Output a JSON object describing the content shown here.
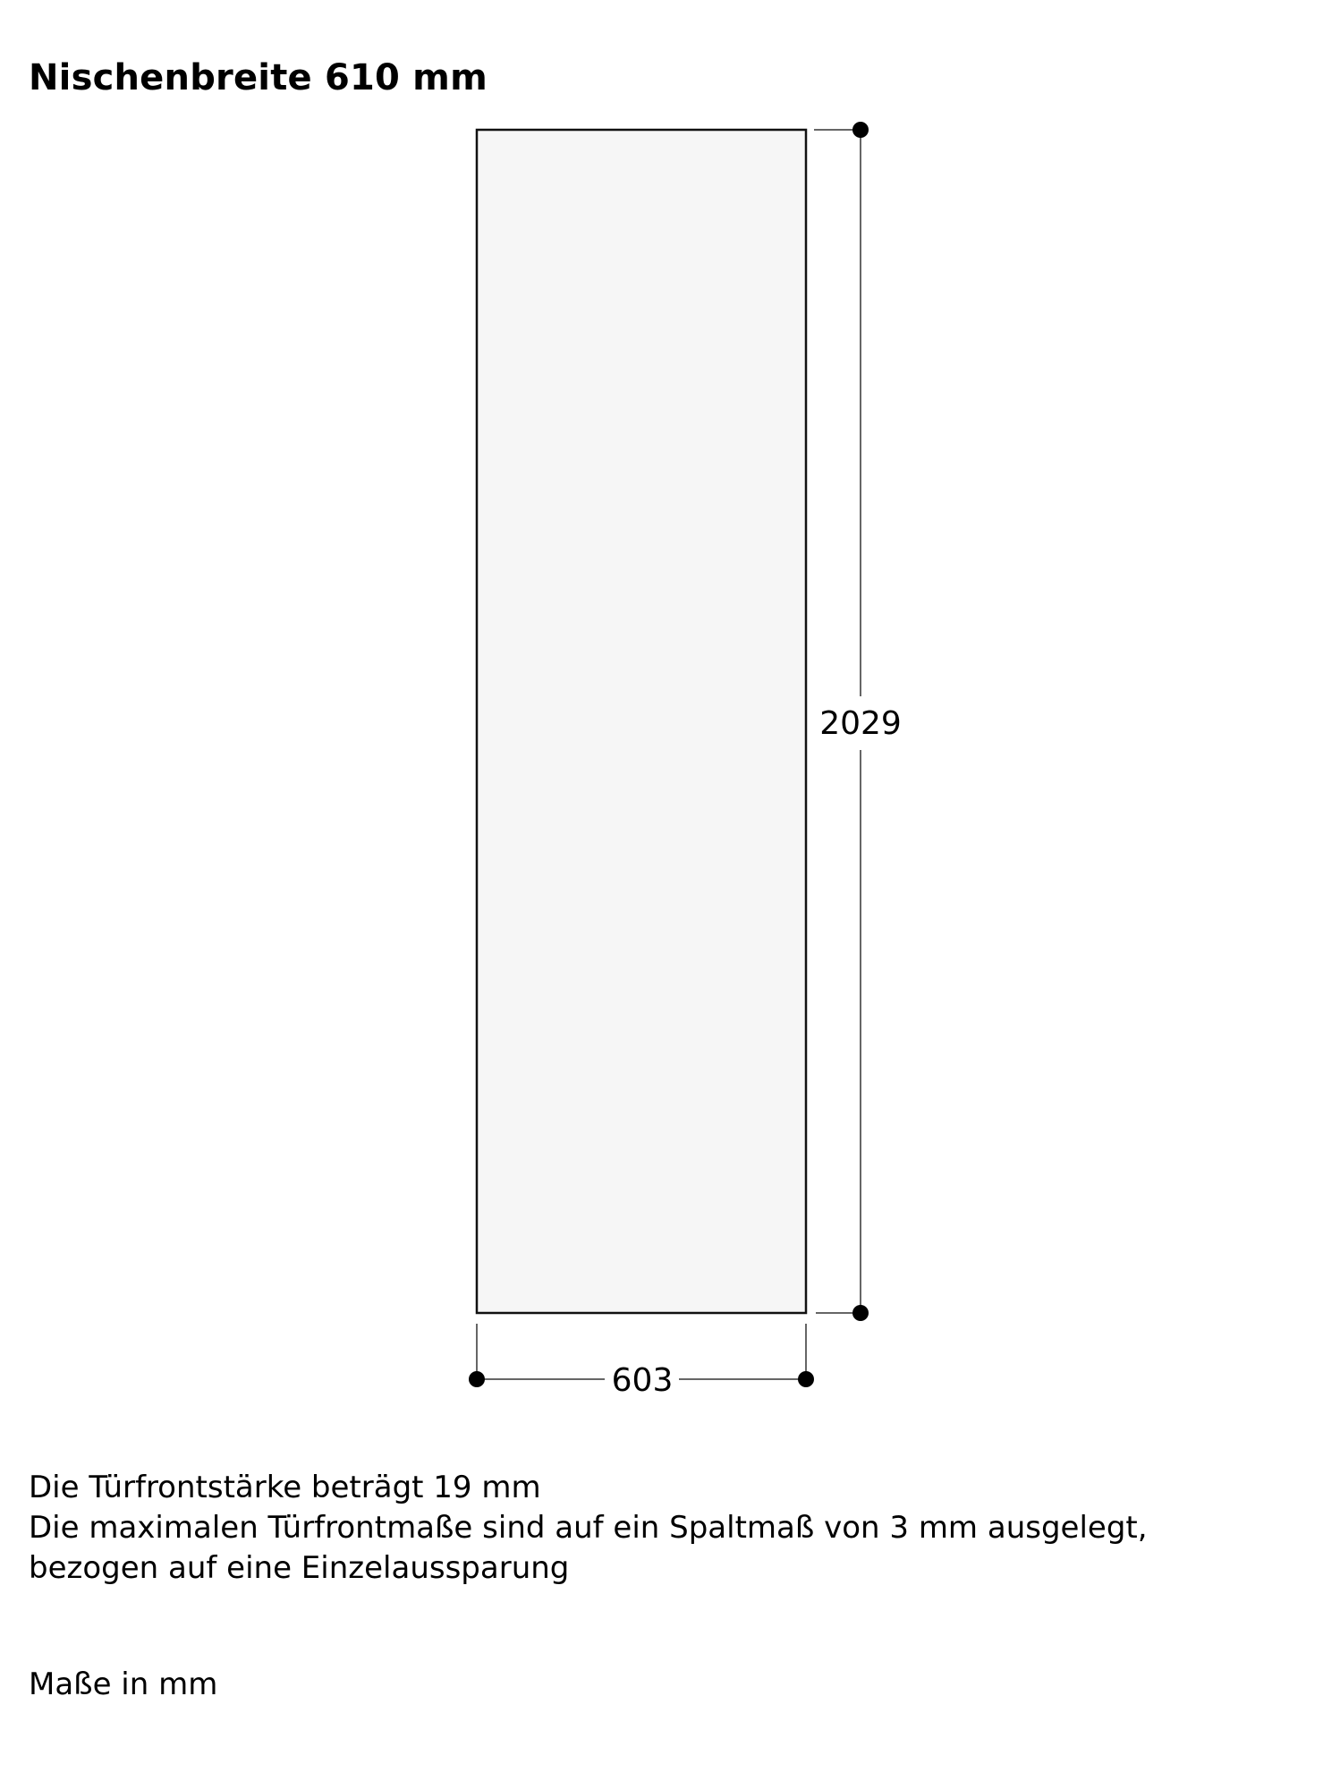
{
  "title": "Nischenbreite 610 mm",
  "drawing": {
    "height_label": "2029",
    "width_label": "603",
    "panel_fill": "#f6f6f6",
    "line_color": "#000000"
  },
  "notes": [
    "Die Türfrontstärke beträgt 19 mm",
    "Die maximalen Türfrontmaße sind auf ein Spaltmaß von 3 mm ausgelegt,",
    "bezogen auf eine Einzelaussparung"
  ],
  "units": "Maße in mm"
}
